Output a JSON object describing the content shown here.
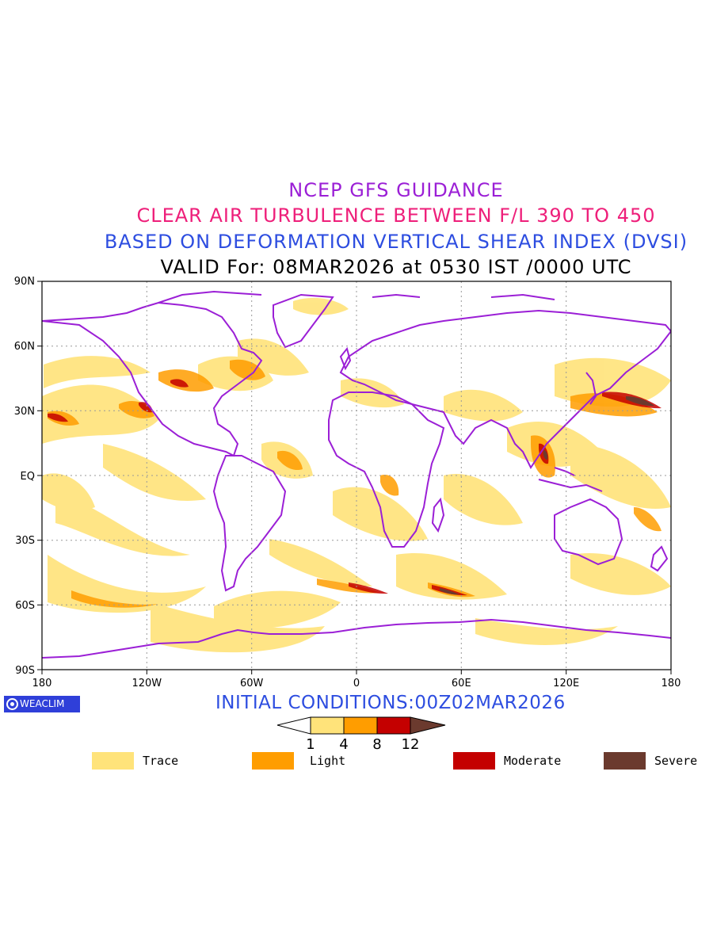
{
  "titles": {
    "line1": "NCEP GFS GUIDANCE",
    "line2": "CLEAR AIR TURBULENCE BETWEEN F/L 390 TO 450",
    "line3": "BASED ON DEFORMATION VERTICAL SHEAR INDEX (DVSI)",
    "line4": "VALID For: 08MAR2026 at 0530 IST /0000 UTC"
  },
  "map": {
    "lat_labels": [
      "90N",
      "60N",
      "30N",
      "EQ",
      "30S",
      "60S",
      "90S"
    ],
    "lon_labels": [
      "180",
      "120W",
      "60W",
      "0",
      "60E",
      "120E",
      "180"
    ],
    "coast_color": "#9b1fd6",
    "grid": "dotted"
  },
  "initial_conditions": "INITIAL CONDITIONS:00Z02MAR2026",
  "logo_text": "WEACLIM",
  "colorbar": {
    "ticks": [
      "1",
      "4",
      "8",
      "12"
    ],
    "colors": [
      "#ffffff",
      "#ffe37a",
      "#ff9d00",
      "#c40000",
      "#6b3a2e"
    ]
  },
  "legend": [
    {
      "label": "Trace",
      "color": "#ffe37a"
    },
    {
      "label": "Light",
      "color": "#ff9d00"
    },
    {
      "label": "Moderate",
      "color": "#c40000"
    },
    {
      "label": "Severe",
      "color": "#6b3a2e"
    }
  ]
}
